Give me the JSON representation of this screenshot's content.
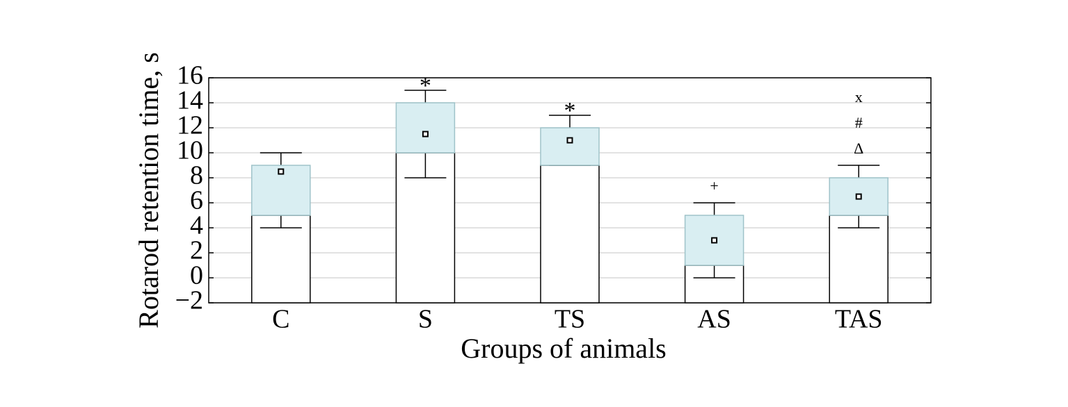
{
  "chart_data": {
    "type": "box",
    "x_label": "Groups of animals",
    "y_label": "Rotarod retention time, s",
    "categories": [
      "C",
      "S",
      "TS",
      "AS",
      "TAS"
    ],
    "min": [
      4,
      8,
      9,
      0,
      4
    ],
    "q1": [
      5,
      10,
      9,
      1,
      5
    ],
    "q3": [
      9,
      14,
      12,
      5,
      8
    ],
    "max": [
      10,
      15,
      13,
      6,
      9
    ],
    "mean": [
      8.5,
      11.5,
      11,
      3,
      6.5
    ],
    "annotations": [
      [],
      [
        "*"
      ],
      [
        "*"
      ],
      [
        "+"
      ],
      [
        "Δ",
        "#",
        "x"
      ]
    ],
    "box_color": "#d9eef2",
    "box_edge": "#9fc3c9",
    "ylim": [
      -2,
      16
    ],
    "yticks": [
      {
        "value": -2,
        "label": "−2"
      },
      0,
      2,
      4,
      6,
      8,
      10,
      12,
      14,
      16
    ],
    "grid": true
  }
}
